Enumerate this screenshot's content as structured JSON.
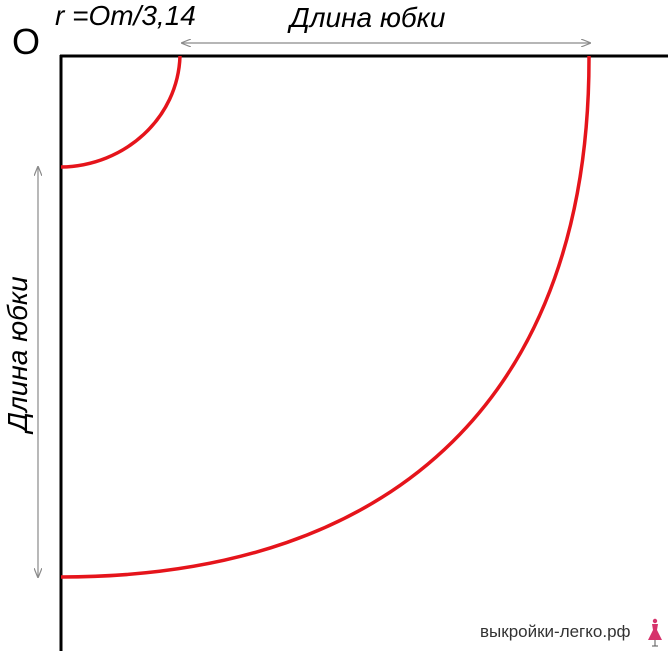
{
  "origin_label": "O",
  "formula": "r =Om/3,14",
  "skirt_length_top": "Длина юбки",
  "skirt_length_side": "Длина юбки",
  "watermark": "выкройки-легко.рф",
  "colors": {
    "axis": "#000000",
    "curve": "#e5141b",
    "arrow": "#8a8a8a",
    "icon": "#d6336c"
  },
  "icons": {
    "watermark_icon": "dress-icon"
  }
}
